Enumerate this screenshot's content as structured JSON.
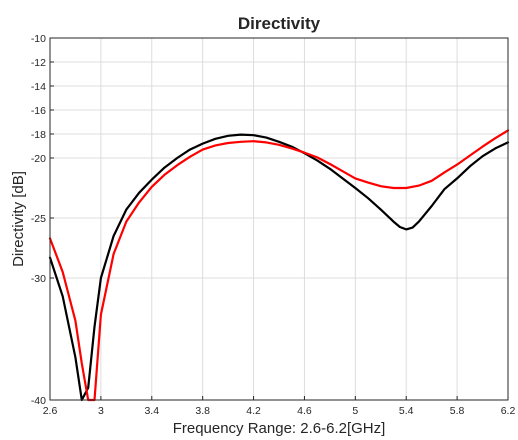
{
  "chart_data": {
    "type": "line",
    "title": "Directivity",
    "xlabel": "Frequency Range: 2.6-6.2[GHz]",
    "ylabel": "Directivity [dB]",
    "xlim": [
      2.6,
      6.2
    ],
    "ylim": [
      -40,
      -10
    ],
    "y_scale_note": "nonlinear (upper range -20..-10 uniform, lower range compressed)",
    "grid": true,
    "legend": "none",
    "x_ticks": [
      {
        "value": 2.6,
        "label": "2.6"
      },
      {
        "value": 3.0,
        "label": "3"
      },
      {
        "value": 3.4,
        "label": "3.4"
      },
      {
        "value": 3.8,
        "label": "3.8"
      },
      {
        "value": 4.2,
        "label": "4.2"
      },
      {
        "value": 4.6,
        "label": "4.6"
      },
      {
        "value": 5.0,
        "label": "5"
      },
      {
        "value": 5.4,
        "label": "5.4"
      },
      {
        "value": 5.8,
        "label": "5.8"
      },
      {
        "value": 6.2,
        "label": "6.2"
      }
    ],
    "y_ticks": [
      {
        "value": -10,
        "label": "-10"
      },
      {
        "value": -12,
        "label": "-12"
      },
      {
        "value": -14,
        "label": "-14"
      },
      {
        "value": -16,
        "label": "-16"
      },
      {
        "value": -18,
        "label": "-18"
      },
      {
        "value": -20,
        "label": "-20"
      },
      {
        "value": -25,
        "label": "-25"
      },
      {
        "value": -30,
        "label": "-30"
      },
      {
        "value": -40,
        "label": "-40"
      }
    ],
    "series": [
      {
        "color": "#000000",
        "x": [
          2.6,
          2.7,
          2.8,
          2.85,
          2.9,
          2.95,
          3.0,
          3.1,
          3.2,
          3.3,
          3.4,
          3.5,
          3.6,
          3.7,
          3.8,
          3.9,
          4.0,
          4.1,
          4.2,
          4.3,
          4.4,
          4.5,
          4.6,
          4.7,
          4.8,
          4.9,
          5.0,
          5.1,
          5.2,
          5.3,
          5.35,
          5.4,
          5.45,
          5.5,
          5.6,
          5.7,
          5.8,
          5.9,
          6.0,
          6.1,
          6.2
        ],
        "y": [
          -28.3,
          -31.5,
          -36.5,
          -40.0,
          -39.0,
          -34.0,
          -30.0,
          -26.5,
          -24.3,
          -22.9,
          -21.8,
          -20.8,
          -20.0,
          -19.3,
          -18.8,
          -18.4,
          -18.15,
          -18.05,
          -18.1,
          -18.3,
          -18.65,
          -19.05,
          -19.6,
          -20.2,
          -20.9,
          -21.7,
          -22.5,
          -23.35,
          -24.3,
          -25.3,
          -25.75,
          -25.95,
          -25.8,
          -25.3,
          -24.0,
          -22.6,
          -21.7,
          -20.7,
          -19.85,
          -19.2,
          -18.7
        ]
      },
      {
        "color": "#ff0000",
        "x": [
          2.6,
          2.7,
          2.8,
          2.85,
          2.9,
          2.95,
          3.0,
          3.1,
          3.2,
          3.3,
          3.4,
          3.5,
          3.6,
          3.7,
          3.8,
          3.9,
          4.0,
          4.1,
          4.2,
          4.3,
          4.4,
          4.5,
          4.6,
          4.7,
          4.8,
          4.9,
          5.0,
          5.1,
          5.2,
          5.3,
          5.4,
          5.5,
          5.6,
          5.7,
          5.8,
          5.9,
          6.0,
          6.1,
          6.2
        ],
        "y": [
          -26.7,
          -29.5,
          -33.5,
          -37.0,
          -40.0,
          -40.0,
          -33.0,
          -28.0,
          -25.3,
          -23.7,
          -22.4,
          -21.4,
          -20.6,
          -19.9,
          -19.3,
          -18.95,
          -18.75,
          -18.65,
          -18.6,
          -18.7,
          -18.9,
          -19.2,
          -19.55,
          -19.95,
          -20.5,
          -21.1,
          -21.7,
          -22.05,
          -22.35,
          -22.5,
          -22.5,
          -22.3,
          -21.9,
          -21.2,
          -20.55,
          -19.8,
          -19.05,
          -18.35,
          -17.7
        ]
      }
    ]
  }
}
